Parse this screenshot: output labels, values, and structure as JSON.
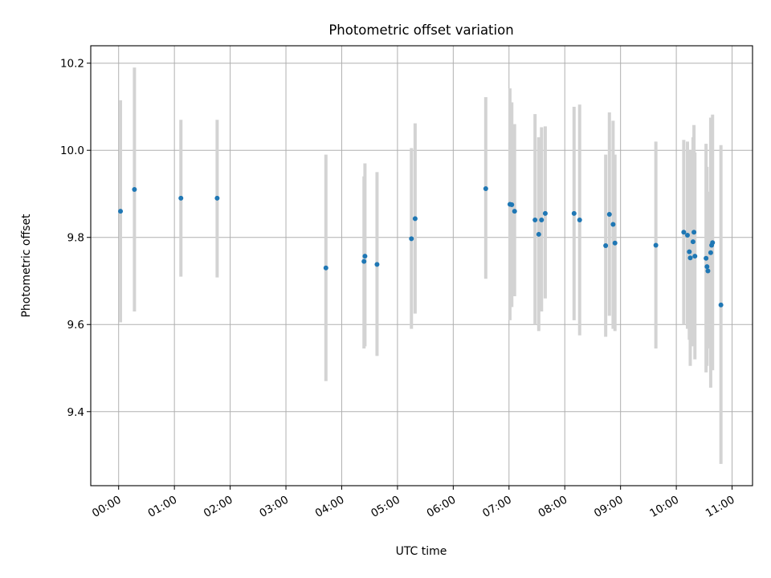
{
  "chart_data": {
    "type": "scatter",
    "title": "Photometric offset variation",
    "xlabel": "UTC time",
    "ylabel": "Photometric offset",
    "x_unit": "UTC hours",
    "xlim": [
      "23:30",
      "11:22"
    ],
    "ylim": [
      9.23,
      10.24
    ],
    "grid": true,
    "x_ticks": [
      "00:00",
      "01:00",
      "02:00",
      "03:00",
      "04:00",
      "05:00",
      "06:00",
      "07:00",
      "08:00",
      "09:00",
      "10:00",
      "11:00"
    ],
    "y_ticks": [
      9.4,
      9.6,
      9.8,
      10.0,
      10.2
    ],
    "y_tick_labels": [
      "9.4",
      "9.6",
      "9.8",
      "10.0",
      "10.2"
    ],
    "colors": {
      "points": "#1f77b4",
      "error_bars": "#d3d3d3",
      "grid": "#b0b0b0"
    },
    "points": [
      {
        "x": "00:02",
        "y": 9.86,
        "lo": 9.605,
        "hi": 10.115
      },
      {
        "x": "00:17",
        "y": 9.91,
        "lo": 9.63,
        "hi": 10.19
      },
      {
        "x": "01:07",
        "y": 9.89,
        "lo": 9.71,
        "hi": 10.07
      },
      {
        "x": "01:46",
        "y": 9.89,
        "lo": 9.708,
        "hi": 10.07
      },
      {
        "x": "03:43",
        "y": 9.73,
        "lo": 9.47,
        "hi": 9.99
      },
      {
        "x": "04:24",
        "y": 9.745,
        "lo": 9.545,
        "hi": 9.94
      },
      {
        "x": "04:25",
        "y": 9.757,
        "lo": 9.55,
        "hi": 9.97
      },
      {
        "x": "04:38",
        "y": 9.738,
        "lo": 9.528,
        "hi": 9.95
      },
      {
        "x": "05:15",
        "y": 9.797,
        "lo": 9.59,
        "hi": 10.005
      },
      {
        "x": "05:19",
        "y": 9.843,
        "lo": 9.625,
        "hi": 10.062
      },
      {
        "x": "06:35",
        "y": 9.912,
        "lo": 9.705,
        "hi": 10.122
      },
      {
        "x": "07:01",
        "y": 9.876,
        "lo": 9.61,
        "hi": 10.142
      },
      {
        "x": "07:03",
        "y": 9.875,
        "lo": 9.64,
        "hi": 10.11
      },
      {
        "x": "07:06",
        "y": 9.86,
        "lo": 9.665,
        "hi": 10.06
      },
      {
        "x": "07:28",
        "y": 9.84,
        "lo": 9.6,
        "hi": 10.083
      },
      {
        "x": "07:32",
        "y": 9.807,
        "lo": 9.585,
        "hi": 10.03
      },
      {
        "x": "07:35",
        "y": 9.84,
        "lo": 9.63,
        "hi": 10.053
      },
      {
        "x": "07:39",
        "y": 9.855,
        "lo": 9.66,
        "hi": 10.055
      },
      {
        "x": "08:10",
        "y": 9.855,
        "lo": 9.61,
        "hi": 10.1
      },
      {
        "x": "08:16",
        "y": 9.84,
        "lo": 9.575,
        "hi": 10.105
      },
      {
        "x": "08:44",
        "y": 9.781,
        "lo": 9.572,
        "hi": 9.99
      },
      {
        "x": "08:48",
        "y": 9.853,
        "lo": 9.62,
        "hi": 10.087
      },
      {
        "x": "08:52",
        "y": 9.83,
        "lo": 9.59,
        "hi": 10.068
      },
      {
        "x": "08:54",
        "y": 9.787,
        "lo": 9.585,
        "hi": 9.99
      },
      {
        "x": "09:38",
        "y": 9.782,
        "lo": 9.545,
        "hi": 10.02
      },
      {
        "x": "10:08",
        "y": 9.812,
        "lo": 9.6,
        "hi": 10.024
      },
      {
        "x": "10:12",
        "y": 9.805,
        "lo": 9.59,
        "hi": 10.02
      },
      {
        "x": "10:14",
        "y": 9.767,
        "lo": 9.565,
        "hi": 9.97
      },
      {
        "x": "10:15",
        "y": 9.753,
        "lo": 9.505,
        "hi": 10.0
      },
      {
        "x": "10:18",
        "y": 9.79,
        "lo": 9.55,
        "hi": 10.03
      },
      {
        "x": "10:19",
        "y": 9.812,
        "lo": 9.565,
        "hi": 10.058
      },
      {
        "x": "10:20",
        "y": 9.757,
        "lo": 9.52,
        "hi": 9.995
      },
      {
        "x": "10:32",
        "y": 9.752,
        "lo": 9.49,
        "hi": 10.015
      },
      {
        "x": "10:33",
        "y": 9.733,
        "lo": 9.505,
        "hi": 9.962
      },
      {
        "x": "10:34",
        "y": 9.723,
        "lo": 9.545,
        "hi": 9.905
      },
      {
        "x": "10:37",
        "y": 9.765,
        "lo": 9.455,
        "hi": 10.075
      },
      {
        "x": "10:38",
        "y": 9.782,
        "lo": 9.545,
        "hi": 10.02
      },
      {
        "x": "10:39",
        "y": 9.788,
        "lo": 9.495,
        "hi": 10.082
      },
      {
        "x": "10:48",
        "y": 9.645,
        "lo": 9.28,
        "hi": 10.012
      }
    ]
  }
}
